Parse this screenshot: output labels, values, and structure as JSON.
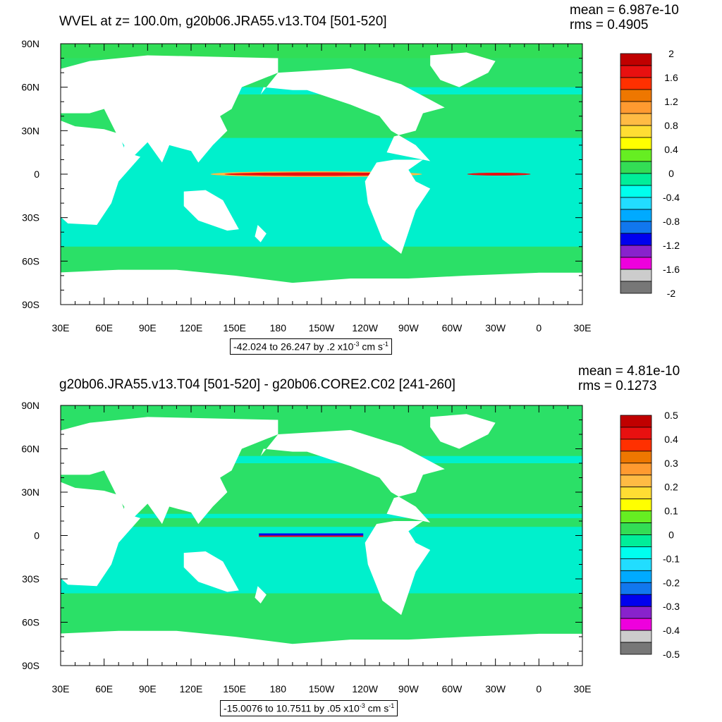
{
  "panels": [
    {
      "title": "WVEL at z= 100.0m, g20b06.JRA55.v13.T04 [501-520]",
      "mean": "mean = 6.987e-10",
      "rms": "rms = 0.4905",
      "caption": {
        "range": "-42.024 to 26.247 by .2 x10",
        "exp": "-3",
        "units": " cm s",
        "uexp": "-1"
      },
      "colorbar": {
        "labels": [
          "2",
          "1.6",
          "1.2",
          "0.8",
          "0.4",
          "0",
          "-0.4",
          "-0.8",
          "-1.2",
          "-1.6",
          "-2"
        ],
        "colors": [
          "#c00000",
          "#e81010",
          "#ff3000",
          "#ee7700",
          "#ff9a30",
          "#ffbb44",
          "#ffdd33",
          "#ffff00",
          "#66ee22",
          "#33dd55",
          "#00ee99",
          "#00ffee",
          "#22ddff",
          "#00aaff",
          "#1177ee",
          "#0000ee",
          "#8822cc",
          "#ee00dd",
          "#cccccc",
          "#777777"
        ]
      }
    },
    {
      "title": "g20b06.JRA55.v13.T04 [501-520] - g20b06.CORE2.C02 [241-260]",
      "mean": "mean = 4.81e-10",
      "rms": "rms = 0.1273",
      "caption": {
        "range": "-15.0076 to 10.7511 by .05 x10",
        "exp": "-3",
        "units": " cm s",
        "uexp": "-1"
      },
      "colorbar": {
        "labels": [
          "0.5",
          "0.4",
          "0.3",
          "0.2",
          "0.1",
          "0",
          "-0.1",
          "-0.2",
          "-0.3",
          "-0.4",
          "-0.5"
        ],
        "colors": [
          "#c00000",
          "#e81010",
          "#ff3000",
          "#ee7700",
          "#ff9a30",
          "#ffbb44",
          "#ffdd33",
          "#ffff00",
          "#66ee22",
          "#33dd55",
          "#00ee99",
          "#00ffee",
          "#22ddff",
          "#00aaff",
          "#1177ee",
          "#0000ee",
          "#8822cc",
          "#ee00dd",
          "#cccccc",
          "#777777"
        ]
      }
    }
  ],
  "axes": {
    "lat_labels": [
      "90N",
      "60N",
      "30N",
      "0",
      "30S",
      "60S",
      "90S"
    ],
    "lon_labels": [
      "30E",
      "60E",
      "90E",
      "120E",
      "150E",
      "180",
      "150W",
      "120W",
      "90W",
      "60W",
      "30W",
      "0",
      "30E"
    ]
  },
  "colors": {
    "ocean_base": "#00f0cc",
    "ocean_green": "#33dd55",
    "land": "#ffffff",
    "equator_red": "#e81010"
  }
}
